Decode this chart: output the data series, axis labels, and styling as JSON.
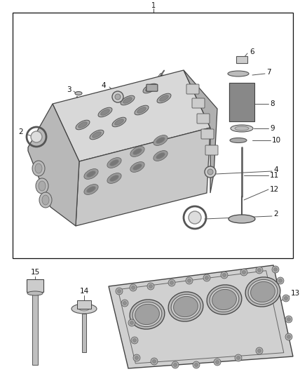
{
  "background": "#ffffff",
  "border_color": "#111111",
  "lc": "#444444",
  "fs": 7,
  "head_color": "#e0e0e0",
  "head_dark": "#b8b8b8",
  "head_side": "#c8c8c8"
}
